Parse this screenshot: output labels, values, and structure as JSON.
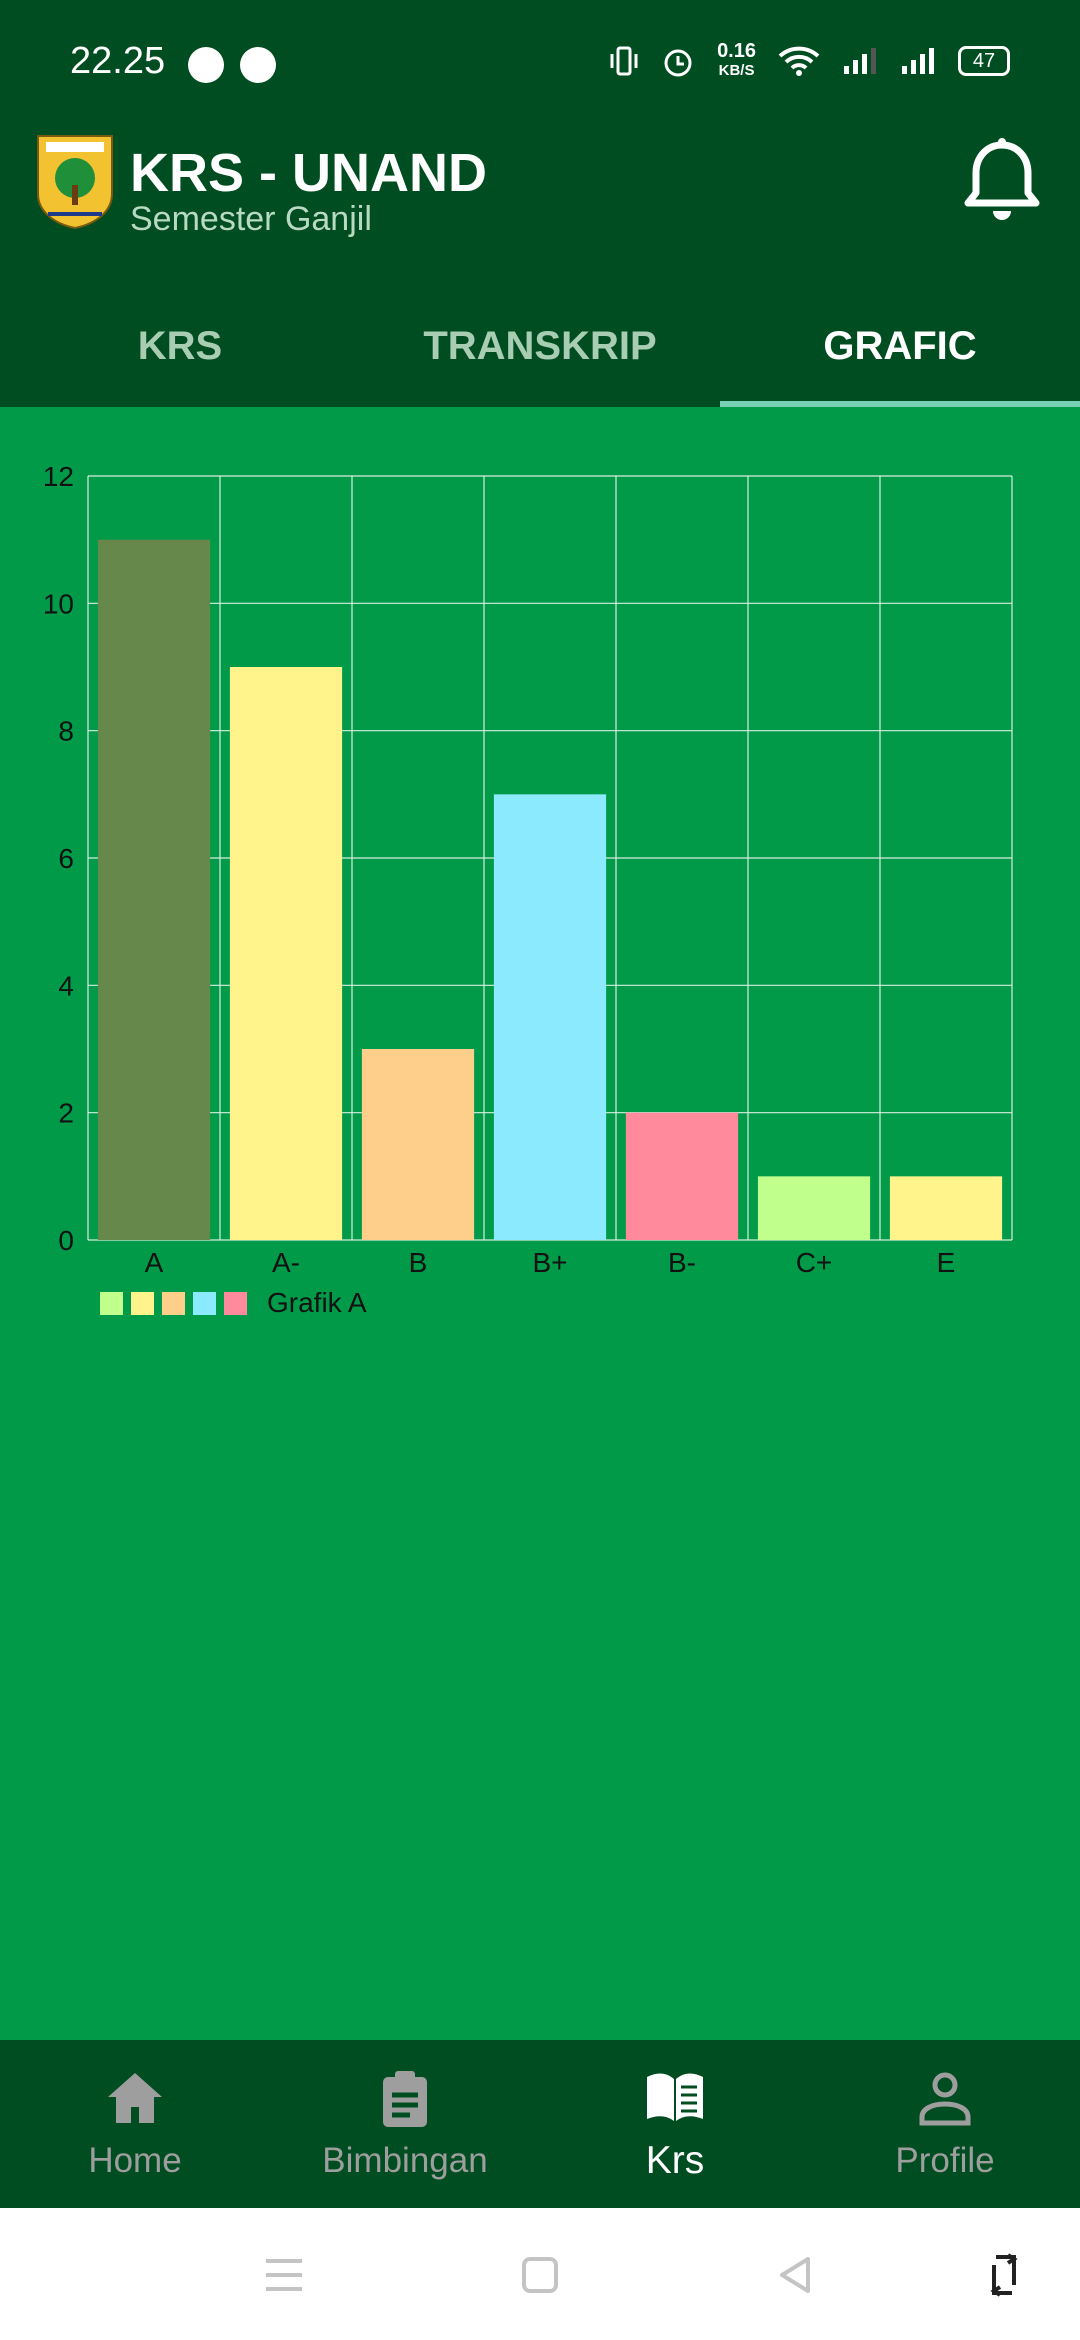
{
  "status_bar": {
    "time": "22.25",
    "network_speed": "0.16",
    "network_speed_unit": "KB/S",
    "battery": "47",
    "icons": [
      "telegram-icon",
      "whatsapp-icon",
      "vibrate-icon",
      "alarm-icon",
      "wifi-icon",
      "signal-icon",
      "signal-icon",
      "battery-icon"
    ]
  },
  "header": {
    "title": "KRS - UNAND",
    "subtitle": "Semester Ganjil",
    "logo_icon": "unand-logo",
    "bell_icon": "bell-icon"
  },
  "tabs": [
    {
      "label": "KRS",
      "active": false
    },
    {
      "label": "TRANSKRIP",
      "active": false
    },
    {
      "label": "GRAFIC",
      "active": true
    }
  ],
  "chart_data": {
    "type": "bar",
    "categories": [
      "A",
      "A-",
      "B",
      "B+",
      "B-",
      "C+",
      "E"
    ],
    "values": [
      11,
      9,
      3,
      7,
      2,
      1,
      1
    ],
    "colors": [
      "#66894b",
      "#fff38c",
      "#fecf8a",
      "#8beafe",
      "#ff8a9b",
      "#c1ff8d",
      "#fff38c"
    ],
    "series": [
      {
        "name": "Grafik A",
        "values": [
          11,
          9,
          3,
          7,
          2,
          1,
          1
        ]
      }
    ],
    "legend_colors": [
      "#c1ff8d",
      "#fff38c",
      "#fecf8a",
      "#8beafe",
      "#ff8a9b"
    ],
    "ylim": [
      0,
      12
    ],
    "yticks": [
      "0",
      "2",
      "4",
      "6",
      "8",
      "10",
      "12"
    ],
    "grid": true,
    "legend_position": "bottom-left"
  },
  "bottom_nav": {
    "items": [
      {
        "label": "Home",
        "icon": "home-icon",
        "active": false
      },
      {
        "label": "Bimbingan",
        "icon": "clipboard-icon",
        "active": false
      },
      {
        "label": "Krs",
        "icon": "book-icon",
        "active": true
      },
      {
        "label": "Profile",
        "icon": "person-icon",
        "active": false
      }
    ]
  },
  "system_nav": {
    "icons": [
      "menu-icon",
      "home-square-icon",
      "back-icon",
      "rotate-icon"
    ]
  }
}
